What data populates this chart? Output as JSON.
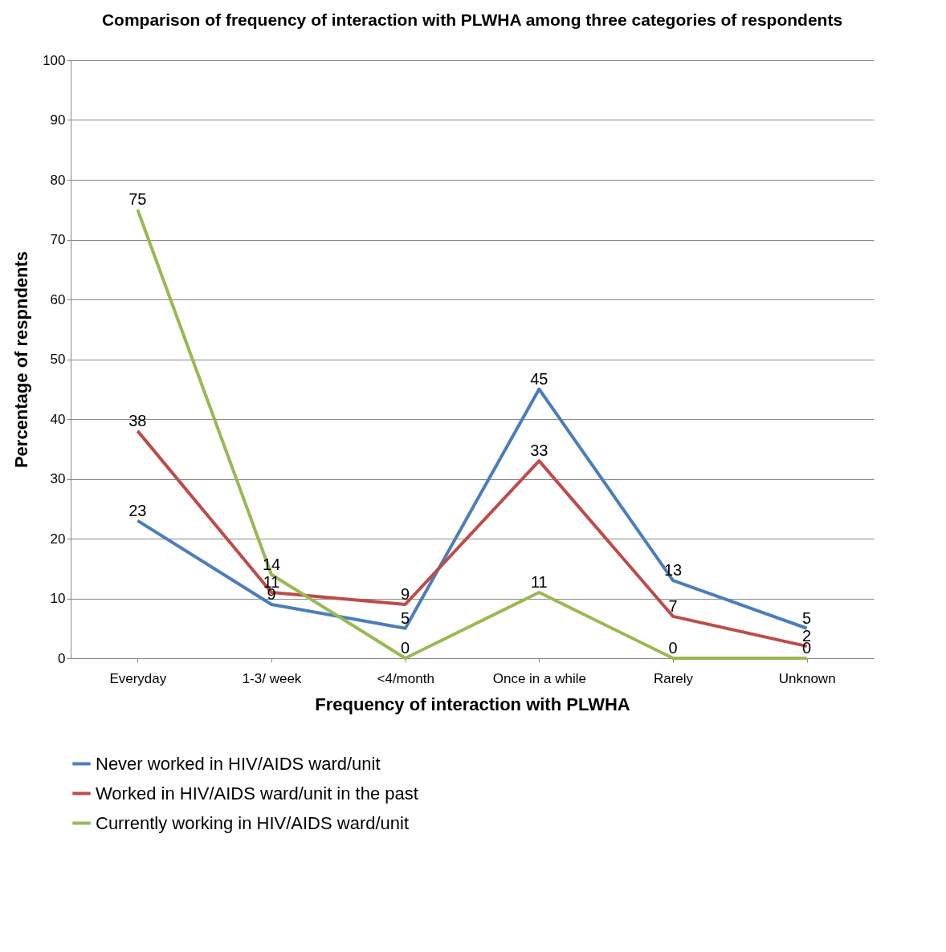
{
  "chart_data": {
    "type": "line",
    "title": "Comparison of frequency of interaction with PLWHA among three categories of respondents",
    "xlabel": "Frequency of interaction with PLWHA",
    "ylabel": "Percentage of respndents",
    "categories": [
      "Everyday",
      "1-3/ week",
      "<4/month",
      "Once in a while",
      "Rarely",
      "Unknown"
    ],
    "series": [
      {
        "name": "Never  worked in HIV/AIDS ward/unit",
        "color": "#4a7ebb",
        "values": [
          23,
          9,
          5,
          45,
          13,
          5
        ]
      },
      {
        "name": "Worked in HIV/AIDS ward/unit in the past",
        "color": "#be4b48",
        "values": [
          38,
          11,
          9,
          33,
          7,
          2
        ]
      },
      {
        "name": "Currently working in HIV/AIDS ward/unit",
        "color": "#98b954",
        "values": [
          75,
          14,
          0,
          11,
          0,
          0
        ]
      }
    ],
    "ylim": [
      0,
      100
    ],
    "yticks": [
      0,
      10,
      20,
      30,
      40,
      50,
      60,
      70,
      80,
      90,
      100
    ],
    "grid": "y",
    "legend": "bottom",
    "data_labels": true,
    "marker": "none",
    "line_style": "solid"
  }
}
